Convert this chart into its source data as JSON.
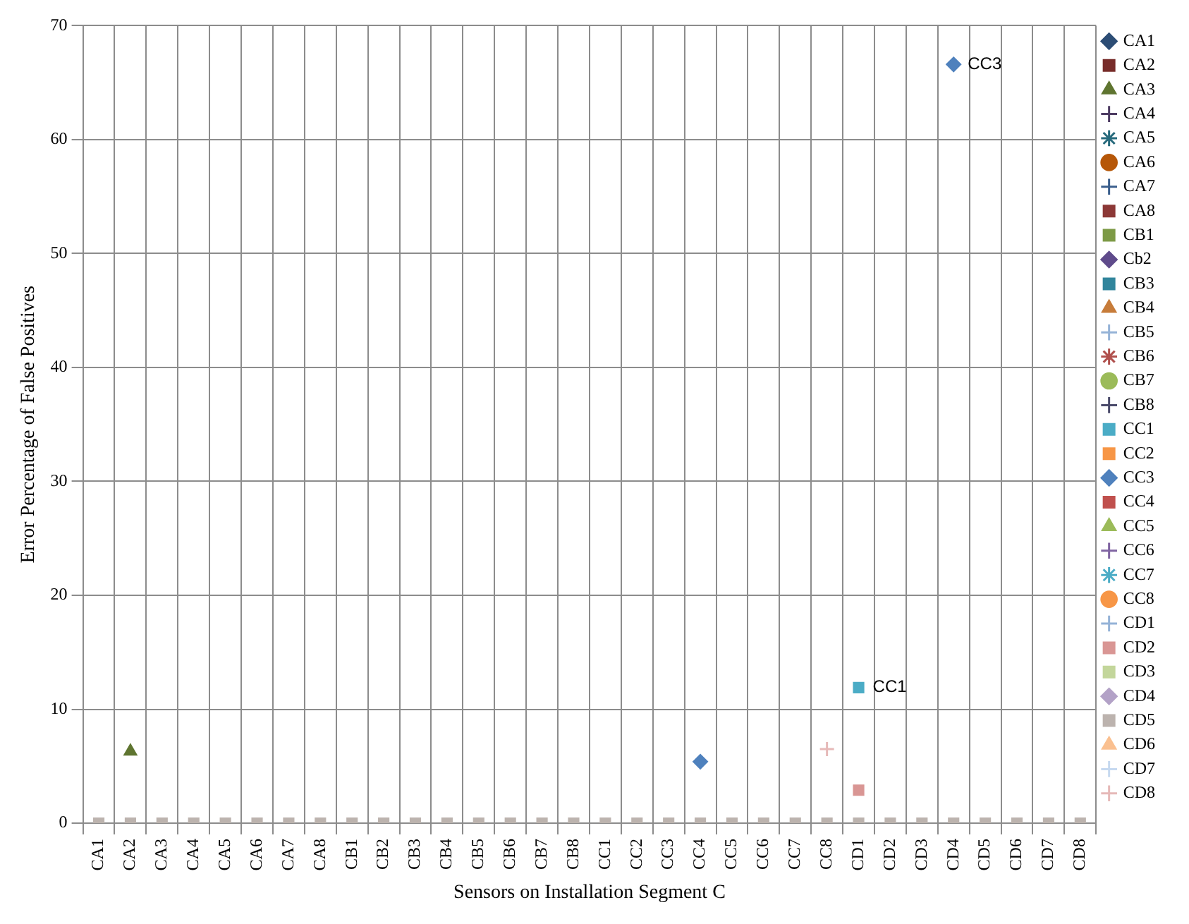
{
  "chart_data": {
    "type": "scatter",
    "xlabel": "Sensors on Installation Segment C",
    "ylabel": "Error Percentage of False Positives",
    "categories": [
      "CA1",
      "CA2",
      "CA3",
      "CA4",
      "CA5",
      "CA6",
      "CA7",
      "CA8",
      "CB1",
      "CB2",
      "CB3",
      "CB4",
      "CB5",
      "CB6",
      "CB7",
      "CB8",
      "CC1",
      "CC2",
      "CC3",
      "CC4",
      "CC5",
      "CC6",
      "CC7",
      "CC8",
      "CD1",
      "CD2",
      "CD3",
      "CD4",
      "CD5",
      "CD6",
      "CD7",
      "CD8"
    ],
    "ylim": [
      0,
      70
    ],
    "yticks": [
      0,
      10,
      20,
      30,
      40,
      50,
      60,
      70
    ],
    "grid": true,
    "legend": "right",
    "series": [
      {
        "name": "CA1",
        "color": "#2c4d75",
        "marker": "diamond",
        "values": [
          null,
          null,
          null,
          null,
          null,
          null,
          null,
          null,
          null,
          null,
          null,
          null,
          null,
          null,
          null,
          null,
          null,
          null,
          null,
          null,
          null,
          null,
          null,
          null,
          null,
          null,
          null,
          null,
          null,
          null,
          null,
          null
        ]
      },
      {
        "name": "CA2",
        "color": "#772c2a",
        "marker": "square",
        "values": [
          null,
          null,
          null,
          null,
          null,
          null,
          null,
          null,
          null,
          null,
          null,
          null,
          null,
          null,
          null,
          null,
          null,
          null,
          null,
          null,
          null,
          null,
          null,
          null,
          null,
          null,
          null,
          null,
          null,
          null,
          null,
          null
        ]
      },
      {
        "name": "CA3",
        "color": "#5f7530",
        "marker": "triangle",
        "x": [
          "CA2"
        ],
        "values": [
          6.3
        ]
      },
      {
        "name": "CA4",
        "color": "#4d3b62",
        "marker": "cross",
        "values": [
          null,
          null,
          null,
          null,
          null,
          null,
          null,
          null,
          null,
          null,
          null,
          null,
          null,
          null,
          null,
          null,
          null,
          null,
          null,
          null,
          null,
          null,
          null,
          null,
          null,
          null,
          null,
          null,
          null,
          null,
          null,
          null
        ]
      },
      {
        "name": "CA5",
        "color": "#276a7c",
        "marker": "star",
        "values": [
          null,
          null,
          null,
          null,
          null,
          null,
          null,
          null,
          null,
          null,
          null,
          null,
          null,
          null,
          null,
          null,
          null,
          null,
          null,
          null,
          null,
          null,
          null,
          null,
          null,
          null,
          null,
          null,
          null,
          null,
          null,
          null
        ]
      },
      {
        "name": "CA6",
        "color": "#b65708",
        "marker": "circle",
        "values": [
          null,
          null,
          null,
          null,
          null,
          null,
          null,
          null,
          null,
          null,
          null,
          null,
          null,
          null,
          null,
          null,
          null,
          null,
          null,
          null,
          null,
          null,
          null,
          null,
          null,
          null,
          null,
          null,
          null,
          null,
          null,
          null
        ]
      },
      {
        "name": "CA7",
        "color": "#3a5e8c",
        "marker": "cross",
        "values": [
          null,
          null,
          null,
          null,
          null,
          null,
          null,
          null,
          null,
          null,
          null,
          null,
          null,
          null,
          null,
          null,
          null,
          null,
          null,
          null,
          null,
          null,
          null,
          null,
          null,
          null,
          null,
          null,
          null,
          null,
          null,
          null
        ]
      },
      {
        "name": "CA8",
        "color": "#8c3836",
        "marker": "square",
        "values": [
          null,
          null,
          null,
          null,
          null,
          null,
          null,
          null,
          null,
          null,
          null,
          null,
          null,
          null,
          null,
          null,
          null,
          null,
          null,
          null,
          null,
          null,
          null,
          null,
          null,
          null,
          null,
          null,
          null,
          null,
          null,
          null
        ]
      },
      {
        "name": "CB1",
        "color": "#7d9a46",
        "marker": "square",
        "values": [
          null,
          null,
          null,
          null,
          null,
          null,
          null,
          null,
          null,
          null,
          null,
          null,
          null,
          null,
          null,
          null,
          null,
          null,
          null,
          null,
          null,
          null,
          null,
          null,
          null,
          null,
          null,
          null,
          null,
          null,
          null,
          null
        ]
      },
      {
        "name": "Cb2",
        "color": "#5f4b8b",
        "marker": "diamond",
        "values": [
          null,
          null,
          null,
          null,
          null,
          null,
          null,
          null,
          null,
          null,
          null,
          null,
          null,
          null,
          null,
          null,
          null,
          null,
          null,
          null,
          null,
          null,
          null,
          null,
          null,
          null,
          null,
          null,
          null,
          null,
          null,
          null
        ]
      },
      {
        "name": "CB3",
        "color": "#31859c",
        "marker": "square",
        "values": [
          null,
          null,
          null,
          null,
          null,
          null,
          null,
          null,
          null,
          null,
          null,
          null,
          null,
          null,
          null,
          null,
          null,
          null,
          null,
          null,
          null,
          null,
          null,
          null,
          null,
          null,
          null,
          null,
          null,
          null,
          null,
          null
        ]
      },
      {
        "name": "CB4",
        "color": "#c77c3a",
        "marker": "triangle",
        "values": [
          null,
          null,
          null,
          null,
          null,
          null,
          null,
          null,
          null,
          null,
          null,
          null,
          null,
          null,
          null,
          null,
          null,
          null,
          null,
          null,
          null,
          null,
          null,
          null,
          null,
          null,
          null,
          null,
          null,
          null,
          null,
          null
        ]
      },
      {
        "name": "CB5",
        "color": "#95b3d7",
        "marker": "cross",
        "values": [
          null,
          null,
          null,
          null,
          null,
          null,
          null,
          null,
          null,
          null,
          null,
          null,
          null,
          null,
          null,
          null,
          null,
          null,
          null,
          null,
          null,
          null,
          null,
          null,
          null,
          null,
          null,
          null,
          null,
          null,
          null,
          null
        ]
      },
      {
        "name": "CB6",
        "color": "#b0504d",
        "marker": "star",
        "values": [
          null,
          null,
          null,
          null,
          null,
          null,
          null,
          null,
          null,
          null,
          null,
          null,
          null,
          null,
          null,
          null,
          null,
          null,
          null,
          null,
          null,
          null,
          null,
          null,
          null,
          null,
          null,
          null,
          null,
          null,
          null,
          null
        ]
      },
      {
        "name": "CB7",
        "color": "#9bbb59",
        "marker": "circle",
        "values": [
          null,
          null,
          null,
          null,
          null,
          null,
          null,
          null,
          null,
          null,
          null,
          null,
          null,
          null,
          null,
          null,
          null,
          null,
          null,
          null,
          null,
          null,
          null,
          null,
          null,
          null,
          null,
          null,
          null,
          null,
          null,
          null
        ]
      },
      {
        "name": "CB8",
        "color": "#4a4a6a",
        "marker": "cross",
        "values": [
          null,
          null,
          null,
          null,
          null,
          null,
          null,
          null,
          null,
          null,
          null,
          null,
          null,
          null,
          null,
          null,
          null,
          null,
          null,
          null,
          null,
          null,
          null,
          null,
          null,
          null,
          null,
          null,
          null,
          null,
          null,
          null
        ]
      },
      {
        "name": "CC1",
        "color": "#4bacc6",
        "marker": "square",
        "x": [
          "CD1"
        ],
        "values": [
          11.9
        ]
      },
      {
        "name": "CC2",
        "color": "#f79646",
        "marker": "square",
        "values": [
          null,
          null,
          null,
          null,
          null,
          null,
          null,
          null,
          null,
          null,
          null,
          null,
          null,
          null,
          null,
          null,
          null,
          null,
          null,
          null,
          null,
          null,
          null,
          null,
          null,
          null,
          null,
          null,
          null,
          null,
          null,
          null
        ]
      },
      {
        "name": "CC3",
        "color": "#4f81bd",
        "marker": "diamond",
        "x": [
          "CC4",
          "CD4"
        ],
        "values": [
          5.4,
          66.6
        ]
      },
      {
        "name": "CC4",
        "color": "#c0504d",
        "marker": "square",
        "values": [
          null,
          null,
          null,
          null,
          null,
          null,
          null,
          null,
          null,
          null,
          null,
          null,
          null,
          null,
          null,
          null,
          null,
          null,
          null,
          null,
          null,
          null,
          null,
          null,
          null,
          null,
          null,
          null,
          null,
          null,
          null,
          null
        ]
      },
      {
        "name": "CC5",
        "color": "#9bbb59",
        "marker": "triangle",
        "values": [
          null,
          null,
          null,
          null,
          null,
          null,
          null,
          null,
          null,
          null,
          null,
          null,
          null,
          null,
          null,
          null,
          null,
          null,
          null,
          null,
          null,
          null,
          null,
          null,
          null,
          null,
          null,
          null,
          null,
          null,
          null,
          null
        ]
      },
      {
        "name": "CC6",
        "color": "#8064a2",
        "marker": "cross",
        "values": [
          null,
          null,
          null,
          null,
          null,
          null,
          null,
          null,
          null,
          null,
          null,
          null,
          null,
          null,
          null,
          null,
          null,
          null,
          null,
          null,
          null,
          null,
          null,
          null,
          null,
          null,
          null,
          null,
          null,
          null,
          null,
          null
        ]
      },
      {
        "name": "CC7",
        "color": "#4bacc6",
        "marker": "star",
        "values": [
          null,
          null,
          null,
          null,
          null,
          null,
          null,
          null,
          null,
          null,
          null,
          null,
          null,
          null,
          null,
          null,
          null,
          null,
          null,
          null,
          null,
          null,
          null,
          null,
          null,
          null,
          null,
          null,
          null,
          null,
          null,
          null
        ]
      },
      {
        "name": "CC8",
        "color": "#f79646",
        "marker": "circle",
        "values": [
          null,
          null,
          null,
          null,
          null,
          null,
          null,
          null,
          null,
          null,
          null,
          null,
          null,
          null,
          null,
          null,
          null,
          null,
          null,
          null,
          null,
          null,
          null,
          null,
          null,
          null,
          null,
          null,
          null,
          null,
          null,
          null
        ]
      },
      {
        "name": "CD1",
        "color": "#95b3d7",
        "marker": "cross",
        "values": [
          null,
          null,
          null,
          null,
          null,
          null,
          null,
          null,
          null,
          null,
          null,
          null,
          null,
          null,
          null,
          null,
          null,
          null,
          null,
          null,
          null,
          null,
          null,
          null,
          null,
          null,
          null,
          null,
          null,
          null,
          null,
          null
        ]
      },
      {
        "name": "CD2",
        "color": "#d99694",
        "marker": "square",
        "x": [
          "CD1"
        ],
        "values": [
          2.9
        ]
      },
      {
        "name": "CD3",
        "color": "#c3d69b",
        "marker": "square",
        "values": [
          null,
          null,
          null,
          null,
          null,
          null,
          null,
          null,
          null,
          null,
          null,
          null,
          null,
          null,
          null,
          null,
          null,
          null,
          null,
          null,
          null,
          null,
          null,
          null,
          null,
          null,
          null,
          null,
          null,
          null,
          null,
          null
        ]
      },
      {
        "name": "CD4",
        "color": "#b3a2c7",
        "marker": "diamond",
        "values": [
          null,
          null,
          null,
          null,
          null,
          null,
          null,
          null,
          null,
          null,
          null,
          null,
          null,
          null,
          null,
          null,
          null,
          null,
          null,
          null,
          null,
          null,
          null,
          null,
          null,
          null,
          null,
          null,
          null,
          null,
          null,
          null
        ]
      },
      {
        "name": "CD5",
        "color": "#bcb3ae",
        "marker": "square",
        "values": [
          0,
          0,
          0,
          0,
          0,
          0,
          0,
          0,
          0,
          0,
          0,
          0,
          0,
          0,
          0,
          0,
          0,
          0,
          0,
          0,
          0,
          0,
          0,
          0,
          0,
          0,
          0,
          0,
          0,
          0,
          0,
          0
        ]
      },
      {
        "name": "CD6",
        "color": "#fac090",
        "marker": "triangle",
        "values": [
          null,
          null,
          null,
          null,
          null,
          null,
          null,
          null,
          null,
          null,
          null,
          null,
          null,
          null,
          null,
          null,
          null,
          null,
          null,
          null,
          null,
          null,
          null,
          null,
          null,
          null,
          null,
          null,
          null,
          null,
          null,
          null
        ]
      },
      {
        "name": "CD7",
        "color": "#c6d9f0",
        "marker": "cross",
        "values": [
          null,
          null,
          null,
          null,
          null,
          null,
          null,
          null,
          null,
          null,
          null,
          null,
          null,
          null,
          null,
          null,
          null,
          null,
          null,
          null,
          null,
          null,
          null,
          null,
          null,
          null,
          null,
          null,
          null,
          null,
          null,
          null
        ]
      },
      {
        "name": "CD8",
        "color": "#e6b9b8",
        "marker": "cross",
        "x": [
          "CC8"
        ],
        "values": [
          6.5
        ]
      }
    ],
    "annotations": [
      {
        "text": "CC3",
        "x": "CD4",
        "y": 66.6
      },
      {
        "text": "CC1",
        "x": "CD1",
        "y": 11.9
      }
    ]
  }
}
